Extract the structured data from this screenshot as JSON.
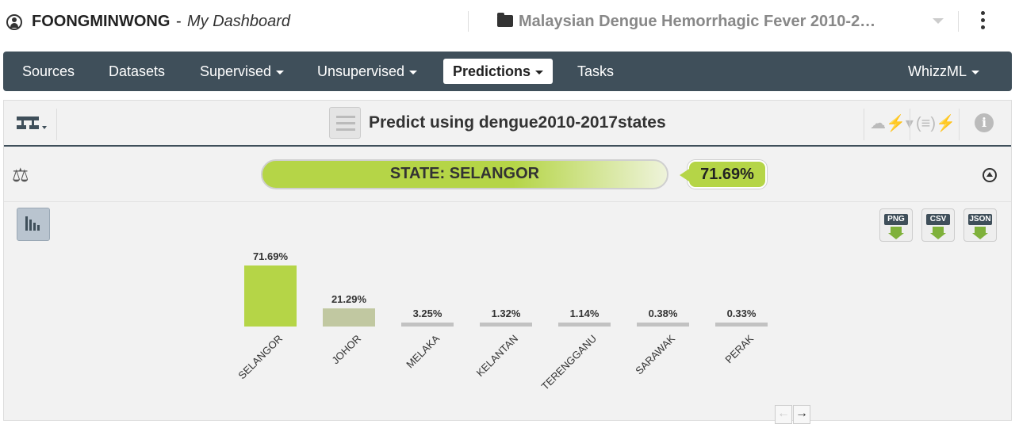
{
  "header": {
    "username": "FOONGMINWONG",
    "separator": " - ",
    "dashboard": "My Dashboard",
    "project": "Malaysian Dengue Hemorrhagic Fever 2010-2…"
  },
  "nav": {
    "items": [
      "Sources",
      "Datasets",
      "Supervised",
      "Unsupervised",
      "Predictions",
      "Tasks"
    ],
    "right": "WhizzML"
  },
  "toolbar": {
    "title": "Predict using dengue2010-2017states"
  },
  "result": {
    "label": "STATE: SELANGOR",
    "confidence": "71.69%"
  },
  "downloads": [
    "PNG",
    "CSV",
    "JSON"
  ],
  "chart_data": {
    "type": "bar",
    "categories": [
      "SELANGOR",
      "JOHOR",
      "MELAKA",
      "KELANTAN",
      "TERENGGANU",
      "SARAWAK",
      "PERAK"
    ],
    "values": [
      71.69,
      21.29,
      3.25,
      1.32,
      1.14,
      0.38,
      0.33
    ],
    "labels": [
      "71.69%",
      "21.29%",
      "3.25%",
      "1.32%",
      "1.14%",
      "0.38%",
      "0.33%"
    ],
    "title": "",
    "xlabel": "",
    "ylabel": "",
    "ylim": [
      0,
      71.69
    ],
    "colors": [
      "#b5d547",
      "#c1c8a1",
      "#c2c2c2",
      "#c2c2c2",
      "#c2c2c2",
      "#c2c2c2",
      "#c2c2c2"
    ]
  }
}
